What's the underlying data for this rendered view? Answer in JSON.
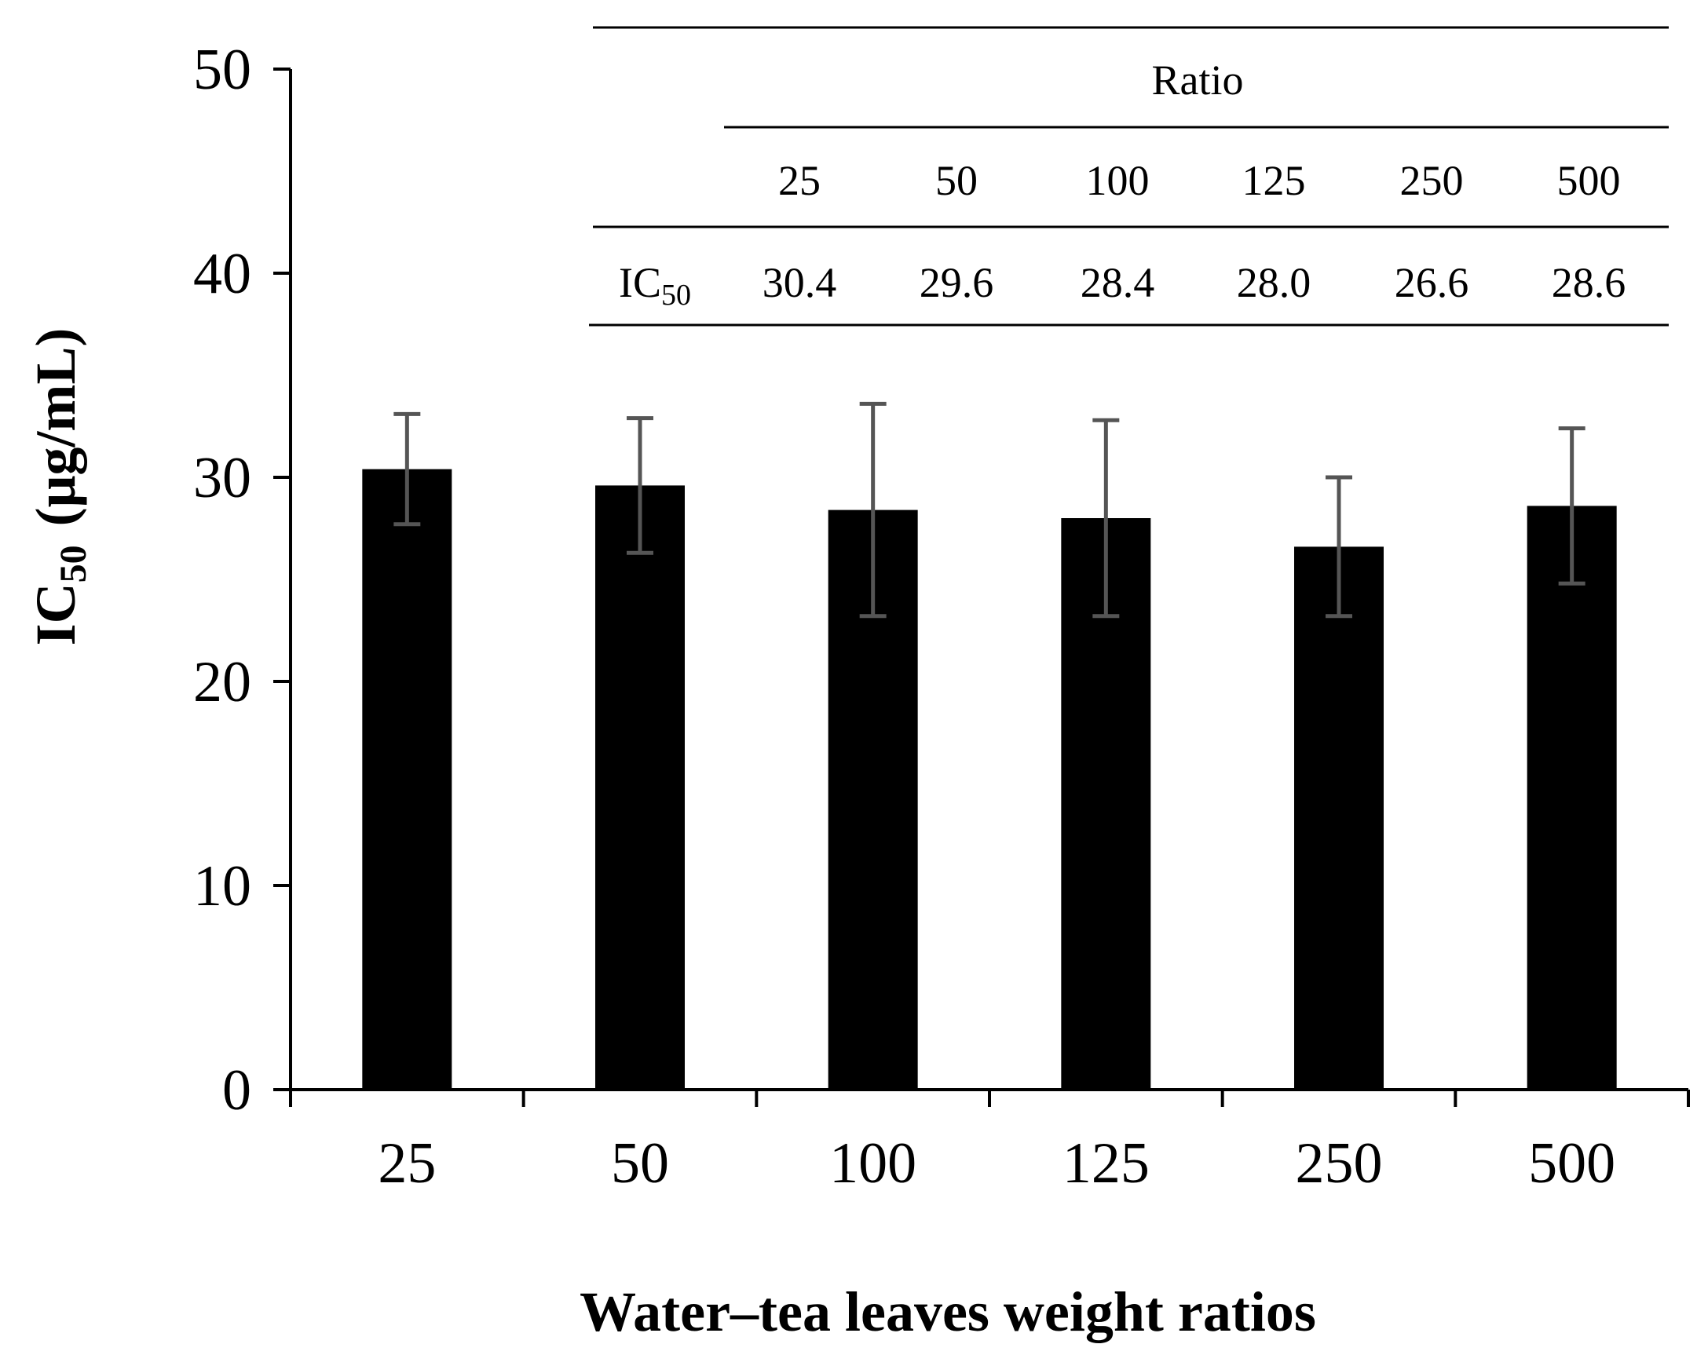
{
  "chart_data": {
    "type": "bar",
    "title": "",
    "xlabel": "Water–tea leaves weight ratios",
    "ylabel": {
      "prefix": "IC",
      "subscript": "50",
      "unit": "(μg/mL)"
    },
    "categories": [
      "25",
      "50",
      "100",
      "125",
      "250",
      "500"
    ],
    "values": [
      30.4,
      29.6,
      28.4,
      28.0,
      26.6,
      28.6
    ],
    "errors": [
      2.7,
      3.3,
      5.2,
      4.8,
      3.4,
      3.8
    ],
    "ylim": [
      0,
      50
    ],
    "yticks": [
      "0",
      "10",
      "20",
      "30",
      "40",
      "50"
    ],
    "grid": false,
    "colors": {
      "bar": "#000000",
      "error": "#555555",
      "axis": "#000000"
    },
    "inset_table": {
      "header": "Ratio",
      "row_label_prefix": "IC",
      "row_label_subscript": "50",
      "columns": [
        "25",
        "50",
        "100",
        "125",
        "250",
        "500"
      ],
      "values": [
        "30.4",
        "29.6",
        "28.4",
        "28.0",
        "26.6",
        "28.6"
      ]
    }
  }
}
